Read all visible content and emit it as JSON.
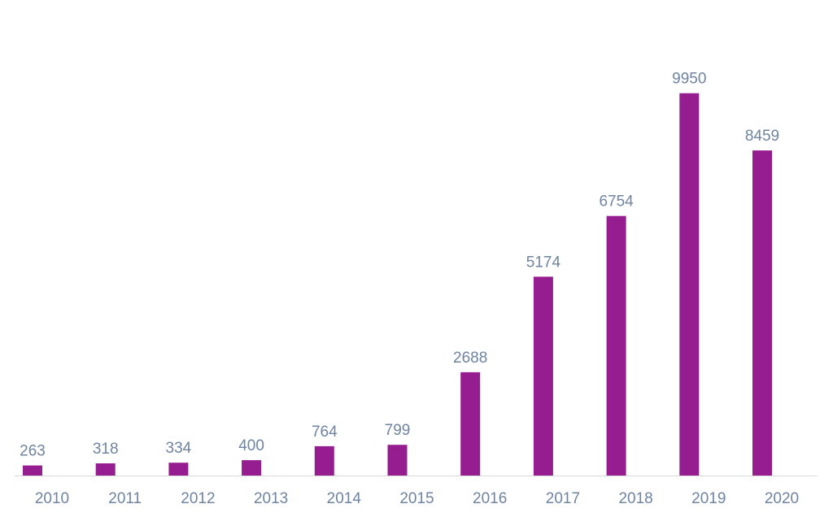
{
  "chart_data": {
    "type": "bar",
    "categories": [
      "2010",
      "2011",
      "2012",
      "2013",
      "2014",
      "2015",
      "2016",
      "2017",
      "2018",
      "2019",
      "2020"
    ],
    "values": [
      263,
      318,
      334,
      400,
      764,
      799,
      2688,
      5174,
      6754,
      9950,
      8459
    ],
    "data_labels": [
      "263",
      "318",
      "334",
      "400",
      "764",
      "799",
      "2688",
      "5174",
      "6754",
      "9950",
      "8459"
    ],
    "ylim": [
      0,
      10000
    ],
    "grid": false,
    "legend": "none",
    "colors": {
      "bar": "#951d8f",
      "label": "#6f84a0",
      "axis": "#d9d9d9"
    }
  }
}
